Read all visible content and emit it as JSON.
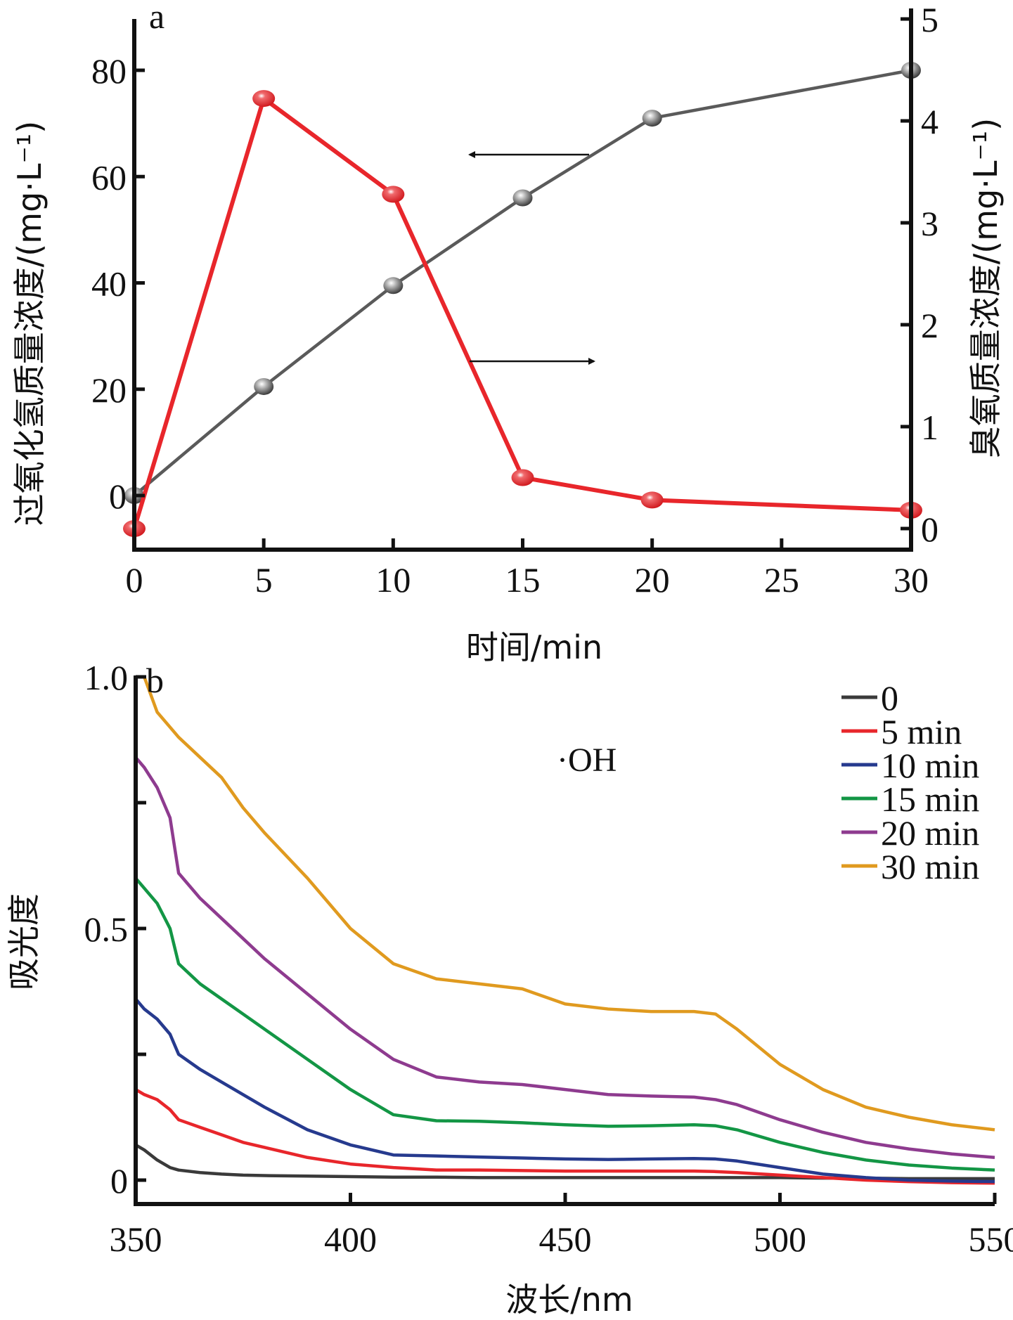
{
  "chart_data": [
    {
      "panel": "a",
      "type": "line",
      "title": "",
      "xlabel": "时间/min",
      "ylabel_left": "过氧化氢质量浓度/(mg·L⁻¹)",
      "ylabel_right": "臭氧质量浓度/(mg·L⁻¹)",
      "xlim": [
        0,
        30
      ],
      "ylim_left": [
        -10,
        90
      ],
      "ylim_right": [
        -0.15,
        5
      ],
      "xticks": [
        0,
        5,
        10,
        15,
        20,
        25,
        30
      ],
      "xtick_labels": [
        "0",
        "5",
        "10",
        "15",
        "20",
        "25",
        "30"
      ],
      "yticks_left": [
        0,
        20,
        40,
        60,
        80
      ],
      "ytick_labels_left": [
        "0",
        "20",
        "40",
        "60",
        "80"
      ],
      "yticks_right": [
        0,
        1,
        2,
        3,
        4,
        5
      ],
      "ytick_labels_right": [
        "0",
        "1",
        "2",
        "3",
        "4",
        "5"
      ],
      "grid": false,
      "series": [
        {
          "name": "过氧化氢",
          "axis": "left",
          "color": "#5a5a5a",
          "x": [
            0,
            5,
            10,
            15,
            20,
            30
          ],
          "y": [
            0,
            20.5,
            39.5,
            56,
            71,
            80
          ]
        },
        {
          "name": "臭氧",
          "axis": "right",
          "color": "#e8262b",
          "x": [
            0,
            5,
            10,
            15,
            20,
            30
          ],
          "y": [
            0.0,
            4.22,
            3.28,
            0.5,
            0.28,
            0.18
          ]
        }
      ],
      "annotations": [
        {
          "type": "arrow",
          "direction": "left",
          "points_to": "left axis",
          "series": "过氧化氢"
        },
        {
          "type": "arrow",
          "direction": "right",
          "points_to": "right axis",
          "series": "臭氧"
        }
      ]
    },
    {
      "panel": "b",
      "type": "line",
      "title": "",
      "xlabel": "波长/nm",
      "ylabel": "吸光度",
      "xlim": [
        350,
        550
      ],
      "ylim": [
        -0.05,
        1.0
      ],
      "xticks": [
        350,
        400,
        450,
        500,
        550
      ],
      "xtick_labels": [
        "350",
        "400",
        "450",
        "500",
        "550"
      ],
      "yticks": [
        0,
        0.25,
        0.5,
        0.75,
        1.0
      ],
      "ytick_labels": [
        "0",
        "",
        "0.5",
        "",
        "1.0"
      ],
      "grid": false,
      "annotation_text": "·OH",
      "legend_position": "top-right",
      "x": [
        350,
        352,
        355,
        358,
        360,
        365,
        370,
        375,
        380,
        390,
        400,
        410,
        420,
        430,
        440,
        450,
        460,
        470,
        480,
        485,
        490,
        500,
        510,
        520,
        530,
        540,
        550
      ],
      "series": [
        {
          "name": "0",
          "color": "#3a3a3a",
          "values": [
            0.07,
            0.06,
            0.04,
            0.025,
            0.02,
            0.015,
            0.012,
            0.01,
            0.009,
            0.008,
            0.007,
            0.006,
            0.006,
            0.005,
            0.005,
            0.005,
            0.005,
            0.005,
            0.005,
            0.005,
            0.005,
            0.005,
            0.004,
            0.004,
            0.003,
            0.003,
            0.003
          ]
        },
        {
          "name": "5 min",
          "color": "#e8262b",
          "values": [
            0.18,
            0.17,
            0.16,
            0.14,
            0.12,
            0.105,
            0.09,
            0.075,
            0.065,
            0.045,
            0.032,
            0.025,
            0.02,
            0.02,
            0.019,
            0.018,
            0.018,
            0.018,
            0.018,
            0.017,
            0.015,
            0.01,
            0.005,
            0.0,
            -0.003,
            -0.005,
            -0.006
          ]
        },
        {
          "name": "10  min",
          "color": "#263a8e",
          "values": [
            0.36,
            0.34,
            0.32,
            0.29,
            0.25,
            0.22,
            0.195,
            0.17,
            0.145,
            0.1,
            0.07,
            0.05,
            0.048,
            0.046,
            0.044,
            0.042,
            0.041,
            0.042,
            0.043,
            0.042,
            0.038,
            0.025,
            0.012,
            0.005,
            0.0,
            -0.002,
            -0.003
          ]
        },
        {
          "name": "15 min",
          "color": "#139645",
          "values": [
            0.6,
            0.58,
            0.55,
            0.5,
            0.43,
            0.39,
            0.36,
            0.33,
            0.3,
            0.24,
            0.18,
            0.13,
            0.118,
            0.117,
            0.114,
            0.11,
            0.107,
            0.108,
            0.11,
            0.108,
            0.1,
            0.075,
            0.055,
            0.04,
            0.03,
            0.024,
            0.02
          ]
        },
        {
          "name": "20 min",
          "color": "#8e3b8f",
          "values": [
            0.84,
            0.82,
            0.78,
            0.72,
            0.61,
            0.56,
            0.52,
            0.48,
            0.44,
            0.37,
            0.3,
            0.24,
            0.205,
            0.195,
            0.19,
            0.18,
            0.17,
            0.167,
            0.165,
            0.16,
            0.15,
            0.12,
            0.095,
            0.075,
            0.062,
            0.052,
            0.045
          ]
        },
        {
          "name": "30 min",
          "color": "#e09a1f",
          "values": [
            null,
            1.0,
            0.93,
            0.9,
            0.88,
            0.84,
            0.8,
            0.74,
            0.69,
            0.6,
            0.5,
            0.43,
            0.4,
            0.39,
            0.38,
            0.35,
            0.34,
            0.335,
            0.335,
            0.33,
            0.3,
            0.23,
            0.18,
            0.145,
            0.125,
            0.11,
            0.1
          ]
        }
      ]
    }
  ],
  "panel_a_label": "a",
  "panel_b_label": "b",
  "annotation_oh": "·OH"
}
